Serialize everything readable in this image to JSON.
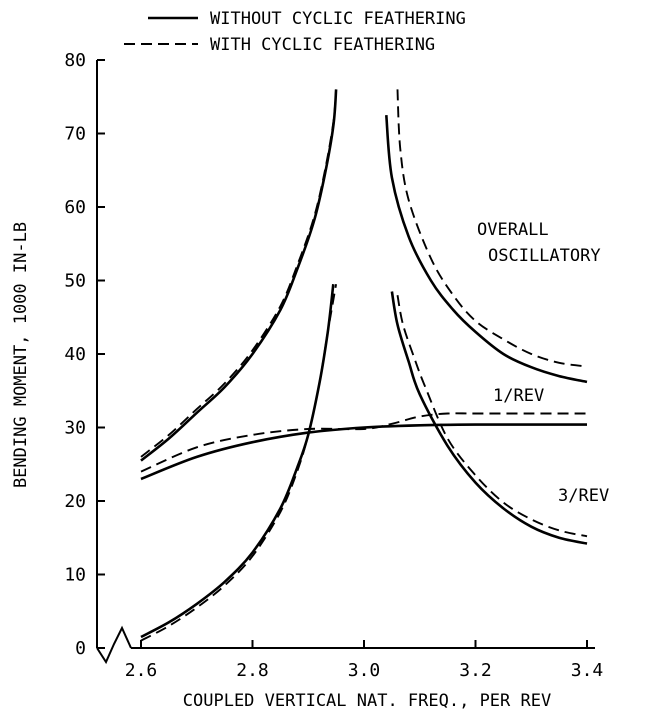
{
  "chart_data": {
    "type": "line",
    "xlabel": "COUPLED VERTICAL NAT. FREQ., PER REV",
    "ylabel": "BENDING MOMENT, 1000 IN-LB",
    "xlim": [
      2.6,
      3.4
    ],
    "ylim": [
      0,
      80
    ],
    "x_ticks": [
      "2.6",
      "2.8",
      "3.0",
      "3.2",
      "3.4"
    ],
    "y_ticks": [
      "0",
      "10",
      "20",
      "30",
      "40",
      "50",
      "60",
      "70",
      "80"
    ],
    "axis_break": true,
    "grid": false,
    "legend": {
      "placement": "top-center",
      "entries": [
        {
          "label": "WITHOUT CYCLIC FEATHERING",
          "style": "solid"
        },
        {
          "label": "WITH CYCLIC FEATHERING",
          "style": "dashed"
        }
      ]
    },
    "annotations": {
      "overall_line1": "OVERALL",
      "overall_line2": "OSCILLATORY",
      "one_rev": "1/REV",
      "three_rev": "3/REV"
    },
    "series": [
      {
        "group": "overall",
        "style": "solid",
        "segment": "left",
        "x": [
          2.6,
          2.65,
          2.7,
          2.75,
          2.8,
          2.85,
          2.88,
          2.91,
          2.93,
          2.945,
          2.95
        ],
        "y": [
          25.5,
          28.5,
          32.0,
          35.5,
          40.0,
          46.0,
          51.5,
          58.0,
          64.5,
          71.0,
          76.0
        ]
      },
      {
        "group": "overall",
        "style": "dashed",
        "segment": "left",
        "x": [
          2.6,
          2.65,
          2.7,
          2.75,
          2.8,
          2.85,
          2.88,
          2.91,
          2.93,
          2.945,
          2.95
        ],
        "y": [
          26.0,
          29.0,
          32.5,
          36.0,
          40.5,
          46.5,
          52.0,
          58.5,
          65.0,
          71.5,
          76.0
        ]
      },
      {
        "group": "overall",
        "style": "solid",
        "segment": "right",
        "x": [
          3.04,
          3.05,
          3.08,
          3.12,
          3.16,
          3.2,
          3.25,
          3.3,
          3.35,
          3.4
        ],
        "y": [
          72.5,
          64.0,
          56.0,
          50.0,
          46.0,
          43.0,
          40.0,
          38.2,
          37.0,
          36.2
        ]
      },
      {
        "group": "overall",
        "style": "dashed",
        "segment": "right",
        "x": [
          3.06,
          3.065,
          3.08,
          3.12,
          3.16,
          3.2,
          3.25,
          3.3,
          3.35,
          3.4
        ],
        "y": [
          76.0,
          68.0,
          61.0,
          53.0,
          48.0,
          44.5,
          42.0,
          40.0,
          38.8,
          38.3
        ]
      },
      {
        "group": "1/REV",
        "style": "solid",
        "x": [
          2.6,
          2.7,
          2.8,
          2.9,
          3.0,
          3.1,
          3.2,
          3.3,
          3.4
        ],
        "y": [
          23.0,
          26.0,
          28.0,
          29.3,
          30.0,
          30.3,
          30.4,
          30.4,
          30.4
        ]
      },
      {
        "group": "1/REV",
        "style": "dashed",
        "x": [
          2.6,
          2.7,
          2.8,
          2.9,
          3.0,
          3.05,
          3.1,
          3.15,
          3.2,
          3.3,
          3.4
        ],
        "y": [
          24.0,
          27.3,
          29.0,
          29.8,
          29.8,
          30.5,
          31.5,
          31.9,
          31.9,
          31.9,
          31.9
        ]
      },
      {
        "group": "3/REV",
        "style": "solid",
        "segment": "left",
        "x": [
          2.6,
          2.65,
          2.7,
          2.75,
          2.8,
          2.85,
          2.88,
          2.9,
          2.92,
          2.935,
          2.945
        ],
        "y": [
          1.5,
          3.5,
          6.0,
          9.0,
          13.0,
          19.0,
          24.5,
          29.0,
          36.0,
          43.0,
          49.5
        ]
      },
      {
        "group": "3/REV",
        "style": "dashed",
        "segment": "left",
        "x": [
          2.6,
          2.65,
          2.7,
          2.75,
          2.8,
          2.85,
          2.88,
          2.9,
          2.92,
          2.935,
          2.95
        ],
        "y": [
          1.0,
          3.0,
          5.5,
          8.5,
          12.5,
          18.5,
          24.0,
          29.0,
          36.0,
          43.0,
          49.5
        ]
      },
      {
        "group": "3/REV",
        "style": "solid",
        "segment": "right",
        "x": [
          3.05,
          3.06,
          3.08,
          3.1,
          3.15,
          3.2,
          3.25,
          3.3,
          3.35,
          3.4
        ],
        "y": [
          48.5,
          44.0,
          39.0,
          34.5,
          27.5,
          22.5,
          19.0,
          16.5,
          15.0,
          14.2
        ]
      },
      {
        "group": "3/REV",
        "style": "dashed",
        "segment": "right",
        "x": [
          3.06,
          3.07,
          3.09,
          3.11,
          3.15,
          3.2,
          3.25,
          3.3,
          3.35,
          3.4
        ],
        "y": [
          48.0,
          44.0,
          39.5,
          35.5,
          28.5,
          23.5,
          19.8,
          17.5,
          16.0,
          15.2
        ]
      }
    ]
  }
}
